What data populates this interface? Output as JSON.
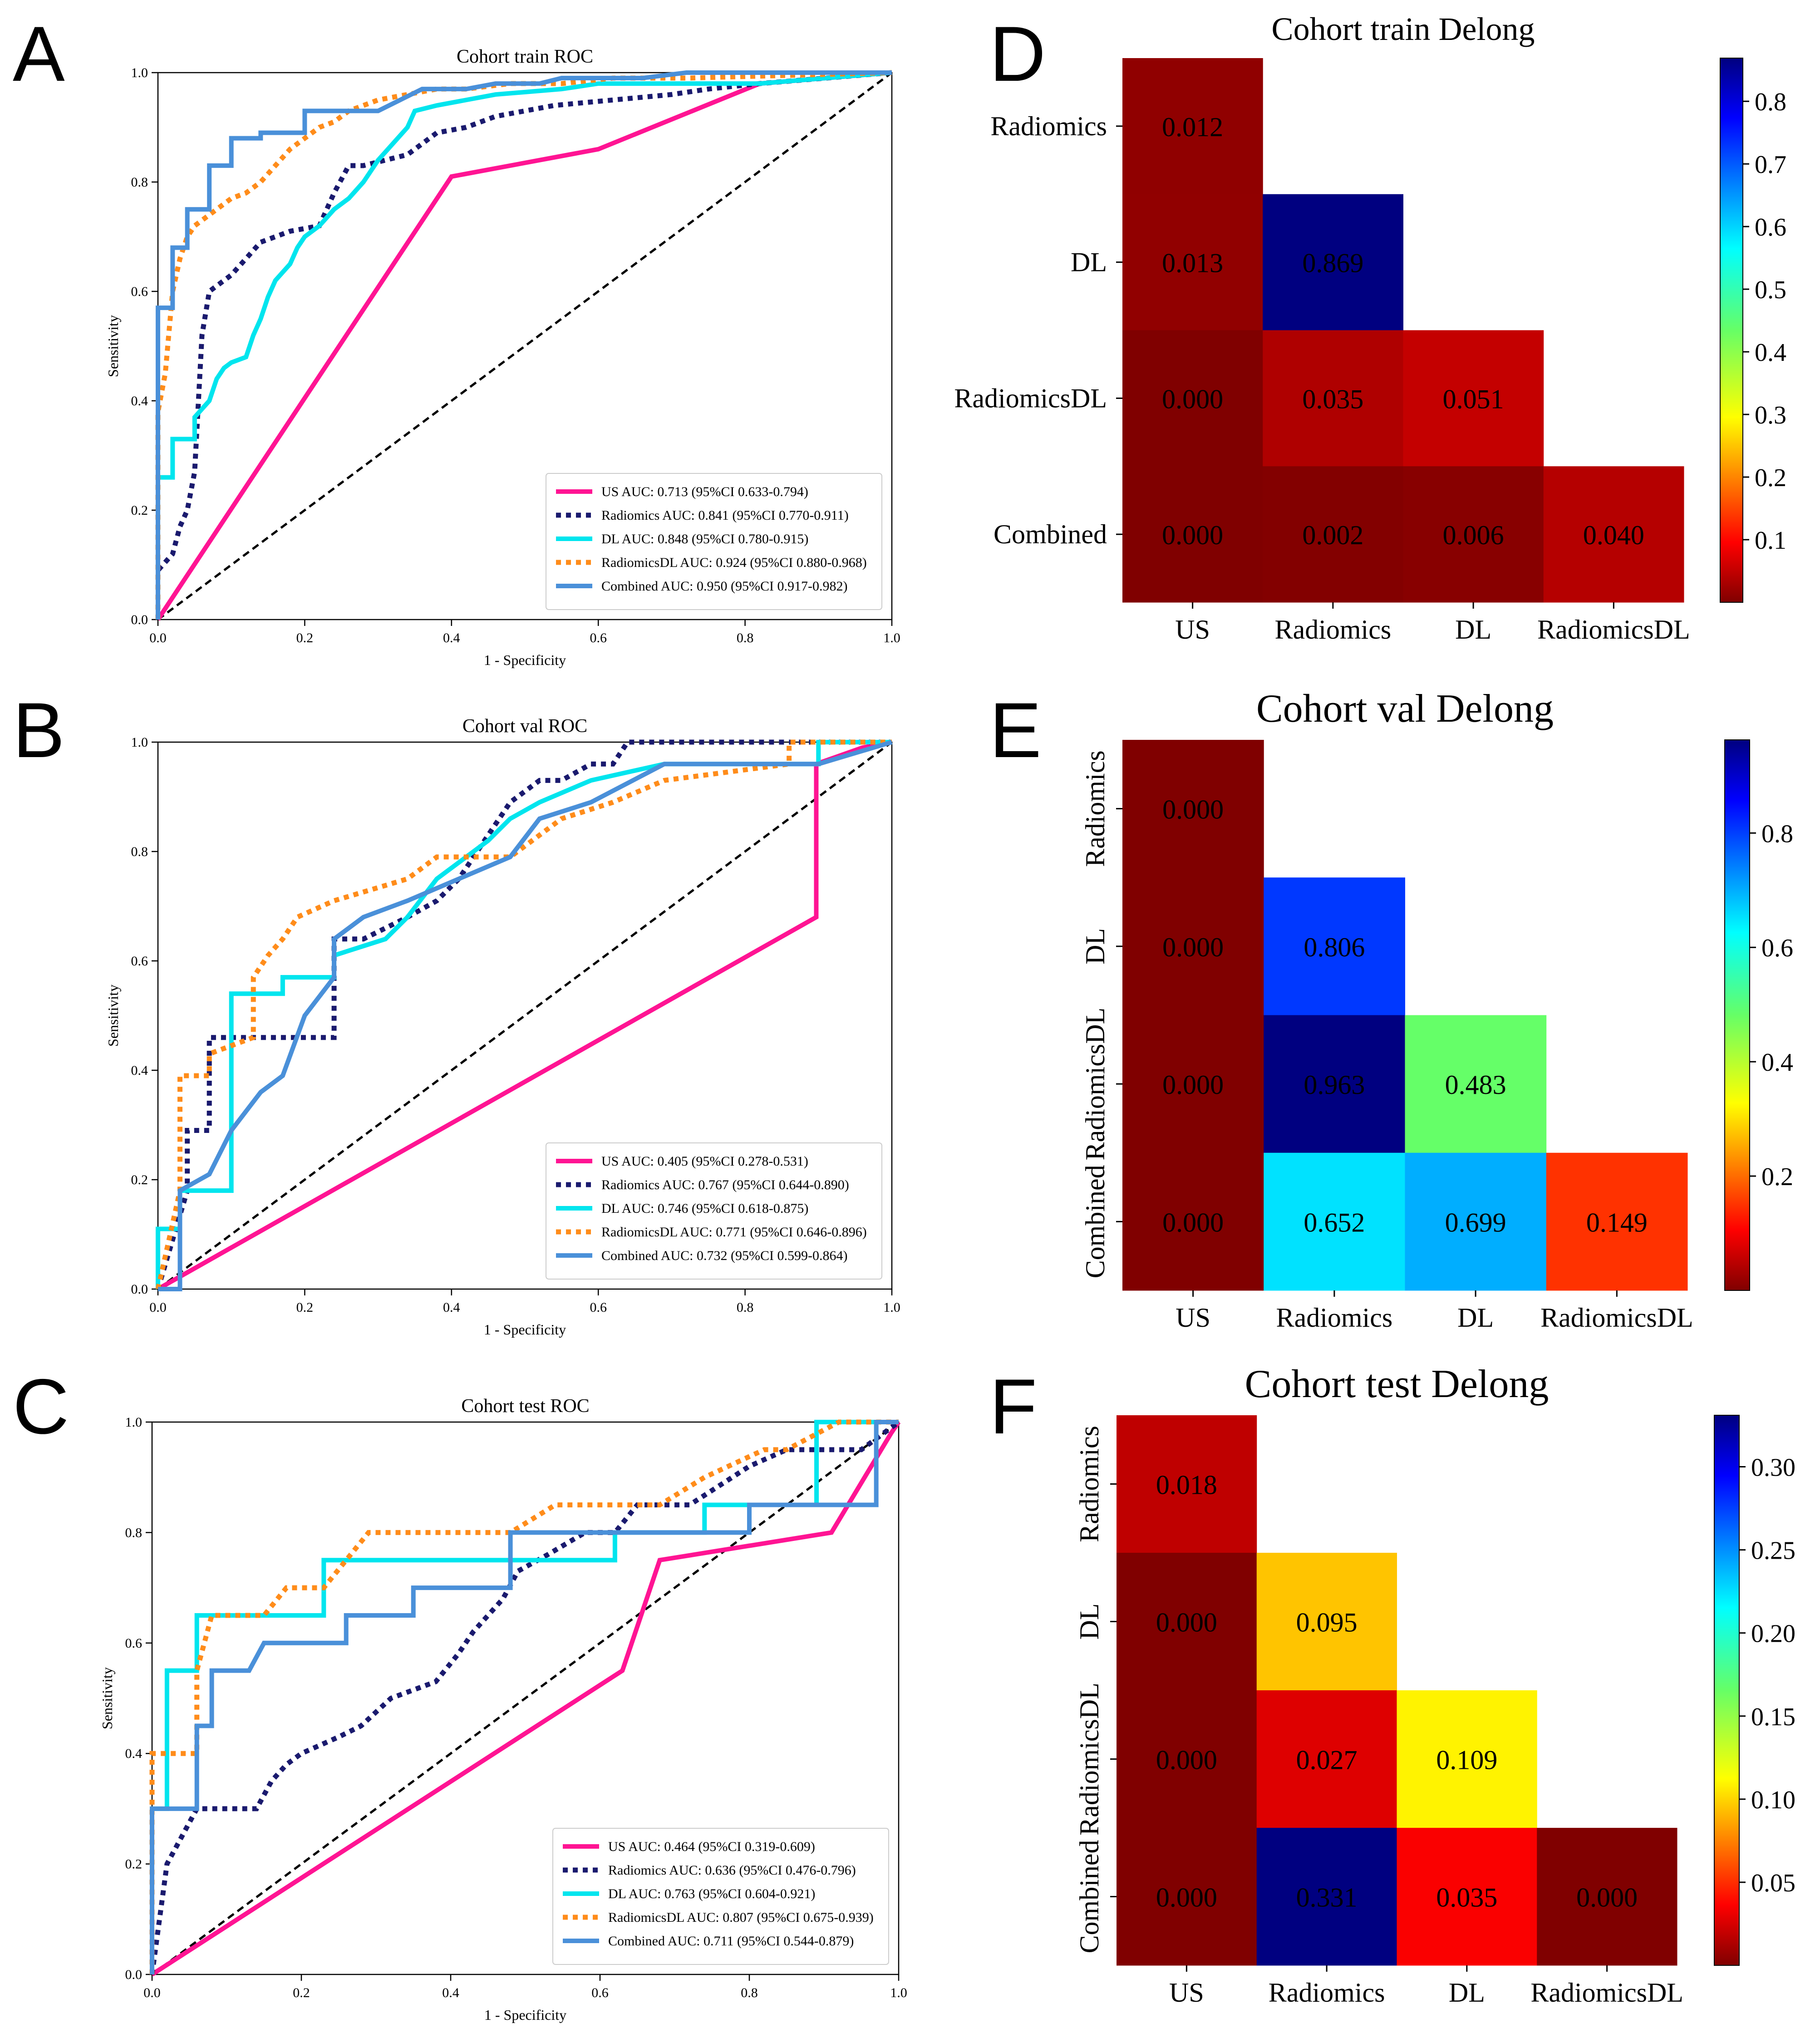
{
  "panel_letters": [
    "A",
    "B",
    "C",
    "D",
    "E",
    "F"
  ],
  "colors": {
    "US": "#ff1493",
    "Radiomics": "#1a1a6e",
    "DL": "#00e5ee",
    "RadiomicsDL": "#ff8c1a",
    "Combined": "#4a90d9",
    "diagonal": "#000000"
  },
  "chart_data": [
    {
      "type": "line",
      "id": "roc-train",
      "title": "Cohort train ROC",
      "xlabel": "1 - Specificity",
      "ylabel": "Sensitivity",
      "xlim": [
        0,
        1
      ],
      "ylim": [
        0,
        1
      ],
      "ticks": [
        "0.0",
        "0.2",
        "0.4",
        "0.6",
        "0.8",
        "1.0"
      ],
      "legend_position": "lower-right",
      "series": [
        {
          "key": "US",
          "name": "US AUC: 0.713 (95%CI 0.633-0.794)",
          "style": "solid",
          "x": [
            0,
            0.4,
            0.6,
            0.82,
            1.0
          ],
          "y": [
            0,
            0.81,
            0.86,
            0.98,
            1.0
          ]
        },
        {
          "key": "Radiomics",
          "name": "Radiomics AUC: 0.841 (95%CI 0.770-0.911)",
          "style": "dotted",
          "x": [
            0,
            0,
            0.02,
            0.03,
            0.04,
            0.05,
            0.06,
            0.07,
            0.08,
            0.1,
            0.12,
            0.14,
            0.18,
            0.22,
            0.24,
            0.26,
            0.28,
            0.34,
            0.36,
            0.38,
            0.42,
            0.46,
            0.54,
            0.62,
            0.7,
            0.75,
            0.82,
            1.0
          ],
          "y": [
            0,
            0.09,
            0.12,
            0.17,
            0.2,
            0.27,
            0.52,
            0.6,
            0.61,
            0.63,
            0.66,
            0.69,
            0.71,
            0.72,
            0.78,
            0.83,
            0.83,
            0.85,
            0.87,
            0.89,
            0.9,
            0.92,
            0.94,
            0.95,
            0.96,
            0.97,
            0.98,
            1.0
          ],
          "step": true
        },
        {
          "key": "DL",
          "name": "DL AUC: 0.848 (95%CI 0.780-0.915)",
          "style": "solid",
          "x": [
            0,
            0,
            0.02,
            0.02,
            0.05,
            0.05,
            0.07,
            0.08,
            0.09,
            0.1,
            0.12,
            0.13,
            0.14,
            0.15,
            0.16,
            0.18,
            0.19,
            0.2,
            0.22,
            0.24,
            0.26,
            0.28,
            0.3,
            0.32,
            0.34,
            0.35,
            0.38,
            0.42,
            0.46,
            0.55,
            0.6,
            0.65,
            0.82,
            1.0
          ],
          "y": [
            0,
            0.26,
            0.26,
            0.33,
            0.33,
            0.37,
            0.4,
            0.44,
            0.46,
            0.47,
            0.48,
            0.52,
            0.55,
            0.59,
            0.62,
            0.65,
            0.68,
            0.7,
            0.72,
            0.75,
            0.77,
            0.8,
            0.84,
            0.87,
            0.9,
            0.93,
            0.94,
            0.95,
            0.96,
            0.97,
            0.98,
            0.98,
            0.98,
            1.0
          ],
          "step": true
        },
        {
          "key": "RadiomicsDL",
          "name": "RadiomicsDL AUC: 0.924 (95%CI 0.880-0.968)",
          "style": "dotted",
          "x": [
            0,
            0,
            0.01,
            0.02,
            0.03,
            0.04,
            0.05,
            0.06,
            0.08,
            0.1,
            0.12,
            0.14,
            0.16,
            0.18,
            0.2,
            0.22,
            0.24,
            0.26,
            0.3,
            0.34,
            0.38,
            0.42,
            0.48,
            0.55,
            0.62,
            0.72,
            1.0
          ],
          "y": [
            0,
            0.38,
            0.45,
            0.6,
            0.66,
            0.7,
            0.72,
            0.73,
            0.75,
            0.77,
            0.78,
            0.8,
            0.83,
            0.86,
            0.88,
            0.9,
            0.91,
            0.93,
            0.95,
            0.96,
            0.97,
            0.97,
            0.98,
            0.98,
            0.99,
            0.99,
            1.0
          ],
          "step": true
        },
        {
          "key": "Combined",
          "name": "Combined AUC: 0.950 (95%CI 0.917-0.982)",
          "style": "solid",
          "x": [
            0,
            0,
            0.02,
            0.02,
            0.04,
            0.04,
            0.07,
            0.07,
            0.1,
            0.1,
            0.14,
            0.14,
            0.2,
            0.2,
            0.3,
            0.33,
            0.36,
            0.42,
            0.46,
            0.52,
            0.55,
            0.6,
            0.66,
            0.72,
            0.8,
            1.0
          ],
          "y": [
            0,
            0.57,
            0.57,
            0.68,
            0.68,
            0.75,
            0.75,
            0.83,
            0.83,
            0.88,
            0.88,
            0.89,
            0.89,
            0.93,
            0.93,
            0.95,
            0.97,
            0.97,
            0.98,
            0.98,
            0.99,
            0.99,
            0.99,
            1.0,
            1.0,
            1.0
          ],
          "step": true
        }
      ]
    },
    {
      "type": "line",
      "id": "roc-val",
      "title": "Cohort val ROC",
      "xlabel": "1 - Specificity",
      "ylabel": "Sensitivity",
      "xlim": [
        0,
        1
      ],
      "ylim": [
        0,
        1
      ],
      "ticks": [
        "0.0",
        "0.2",
        "0.4",
        "0.6",
        "0.8",
        "1.0"
      ],
      "legend_position": "lower-right",
      "series": [
        {
          "key": "US",
          "name": "US AUC: 0.405 (95%CI 0.278-0.531)",
          "style": "solid",
          "x": [
            0,
            0.897,
            0.897,
            0.96,
            1.0
          ],
          "y": [
            0,
            0.68,
            0.96,
            0.99,
            1.0
          ]
        },
        {
          "key": "Radiomics",
          "name": "Radiomics AUC: 0.767 (95%CI 0.644-0.890)",
          "style": "dotted",
          "x": [
            0,
            0.04,
            0.04,
            0.07,
            0.07,
            0.24,
            0.24,
            0.28,
            0.34,
            0.38,
            0.41,
            0.48,
            0.52,
            0.55,
            0.59,
            0.62,
            0.64,
            1.0
          ],
          "y": [
            0,
            0.18,
            0.29,
            0.29,
            0.46,
            0.46,
            0.64,
            0.64,
            0.68,
            0.71,
            0.75,
            0.89,
            0.93,
            0.93,
            0.96,
            0.96,
            1.0,
            1.0
          ],
          "step": true
        },
        {
          "key": "DL",
          "name": "DL AUC: 0.746 (95%CI 0.618-0.875)",
          "style": "solid",
          "x": [
            0,
            0,
            0.03,
            0.03,
            0.1,
            0.1,
            0.17,
            0.17,
            0.24,
            0.24,
            0.31,
            0.34,
            0.38,
            0.45,
            0.48,
            0.52,
            0.59,
            0.69,
            0.86,
            0.9,
            0.9,
            1.0
          ],
          "y": [
            0,
            0.11,
            0.11,
            0.18,
            0.18,
            0.54,
            0.54,
            0.57,
            0.57,
            0.61,
            0.64,
            0.68,
            0.75,
            0.82,
            0.86,
            0.89,
            0.93,
            0.96,
            0.96,
            0.96,
            1.0,
            1.0
          ],
          "step": true
        },
        {
          "key": "RadiomicsDL",
          "name": "RadiomicsDL AUC: 0.771 (95%CI 0.646-0.896)",
          "style": "dotted",
          "x": [
            0,
            0.03,
            0.03,
            0.07,
            0.07,
            0.13,
            0.13,
            0.15,
            0.17,
            0.19,
            0.24,
            0.34,
            0.38,
            0.48,
            0.55,
            0.62,
            0.69,
            0.86,
            0.86,
            1.0
          ],
          "y": [
            0,
            0.18,
            0.39,
            0.39,
            0.43,
            0.46,
            0.57,
            0.61,
            0.64,
            0.68,
            0.71,
            0.75,
            0.79,
            0.79,
            0.86,
            0.89,
            0.93,
            0.96,
            1.0,
            1.0
          ],
          "step": true
        },
        {
          "key": "Combined",
          "name": "Combined AUC: 0.732 (95%CI 0.599-0.864)",
          "style": "solid",
          "x": [
            0,
            0.03,
            0.03,
            0.07,
            0.1,
            0.14,
            0.17,
            0.2,
            0.24,
            0.24,
            0.28,
            0.34,
            0.41,
            0.48,
            0.52,
            0.59,
            0.69,
            0.86,
            0.9,
            1.0
          ],
          "y": [
            0,
            0,
            0.18,
            0.21,
            0.29,
            0.36,
            0.39,
            0.5,
            0.57,
            0.64,
            0.68,
            0.71,
            0.75,
            0.79,
            0.86,
            0.89,
            0.96,
            0.96,
            0.96,
            1.0
          ],
          "step": true
        }
      ]
    },
    {
      "type": "line",
      "id": "roc-test",
      "title": "Cohort test ROC",
      "xlabel": "1 - Specificity",
      "ylabel": "Sensitivity",
      "xlim": [
        0,
        1
      ],
      "ylim": [
        0,
        1
      ],
      "ticks": [
        "0.0",
        "0.2",
        "0.4",
        "0.6",
        "0.8",
        "1.0"
      ],
      "legend_position": "lower-right",
      "series": [
        {
          "key": "US",
          "name": "US AUC: 0.464 (95%CI 0.319-0.609)",
          "style": "solid",
          "x": [
            0,
            0.63,
            0.68,
            0.91,
            0.99,
            1.0
          ],
          "y": [
            0,
            0.55,
            0.75,
            0.8,
            0.98,
            1.0
          ]
        },
        {
          "key": "Radiomics",
          "name": "Radiomics AUC: 0.636 (95%CI 0.476-0.796)",
          "style": "dotted",
          "x": [
            0,
            0.02,
            0.04,
            0.06,
            0.14,
            0.16,
            0.18,
            0.2,
            0.25,
            0.28,
            0.32,
            0.38,
            0.41,
            0.43,
            0.45,
            0.47,
            0.49,
            0.53,
            0.58,
            0.6,
            0.62,
            0.65,
            0.72,
            0.8,
            0.85,
            0.89,
            0.95,
            1.0
          ],
          "y": [
            0,
            0.2,
            0.25,
            0.3,
            0.3,
            0.35,
            0.38,
            0.4,
            0.43,
            0.45,
            0.5,
            0.53,
            0.58,
            0.62,
            0.65,
            0.68,
            0.73,
            0.76,
            0.8,
            0.8,
            0.8,
            0.85,
            0.85,
            0.92,
            0.95,
            0.95,
            0.95,
            1.0
          ],
          "step": true
        },
        {
          "key": "DL",
          "name": "DL AUC: 0.763 (95%CI 0.604-0.921)",
          "style": "solid",
          "x": [
            0,
            0,
            0.02,
            0.02,
            0.04,
            0.04,
            0.06,
            0.06,
            0.23,
            0.23,
            0.62,
            0.62,
            0.74,
            0.74,
            0.89,
            0.89,
            0.95,
            0.95,
            1.0
          ],
          "y": [
            0,
            0.3,
            0.3,
            0.55,
            0.55,
            0.55,
            0.55,
            0.65,
            0.65,
            0.75,
            0.75,
            0.8,
            0.8,
            0.85,
            0.85,
            1.0,
            1.0,
            1.0,
            1.0
          ],
          "step": true
        },
        {
          "key": "RadiomicsDL",
          "name": "RadiomicsDL AUC: 0.807 (95%CI 0.675-0.939)",
          "style": "dotted",
          "x": [
            0,
            0,
            0.06,
            0.06,
            0.08,
            0.15,
            0.18,
            0.23,
            0.26,
            0.29,
            0.48,
            0.54,
            0.68,
            0.74,
            0.82,
            0.85,
            0.92,
            1.0
          ],
          "y": [
            0,
            0.4,
            0.4,
            0.55,
            0.65,
            0.65,
            0.7,
            0.7,
            0.75,
            0.8,
            0.8,
            0.85,
            0.85,
            0.9,
            0.95,
            0.95,
            1.0,
            1.0
          ],
          "step": true
        },
        {
          "key": "Combined",
          "name": "Combined AUC: 0.711 (95%CI 0.544-0.879)",
          "style": "solid",
          "x": [
            0,
            0,
            0.06,
            0.06,
            0.08,
            0.08,
            0.13,
            0.15,
            0.26,
            0.26,
            0.35,
            0.35,
            0.48,
            0.48,
            0.8,
            0.8,
            0.97,
            0.97,
            1.0
          ],
          "y": [
            0,
            0.3,
            0.3,
            0.45,
            0.45,
            0.55,
            0.55,
            0.6,
            0.6,
            0.65,
            0.65,
            0.7,
            0.7,
            0.8,
            0.8,
            0.85,
            0.85,
            1.0,
            1.0
          ],
          "step": true
        }
      ]
    },
    {
      "type": "heatmap",
      "id": "delong-train",
      "title": "Cohort train Delong",
      "columns": [
        "US",
        "Radiomics",
        "DL",
        "RadiomicsDL"
      ],
      "rows": [
        "Radiomics",
        "DL",
        "RadiomicsDL",
        "Combined"
      ],
      "row_label_orientation": "horizontal",
      "values": [
        [
          0.012,
          null,
          null,
          null
        ],
        [
          0.013,
          0.869,
          null,
          null
        ],
        [
          0.0,
          0.035,
          0.051,
          null
        ],
        [
          0.0,
          0.002,
          0.006,
          0.04
        ]
      ],
      "labels": [
        [
          "0.012",
          "",
          "",
          ""
        ],
        [
          "0.013",
          "0.869",
          "",
          ""
        ],
        [
          "0.000",
          "0.035",
          "0.051",
          ""
        ],
        [
          "0.000",
          "0.002",
          "0.006",
          "0.040"
        ]
      ],
      "colorbar": {
        "min": 0.0,
        "max": 0.869,
        "ticks": [
          "0.1",
          "0.2",
          "0.3",
          "0.4",
          "0.5",
          "0.6",
          "0.7",
          "0.8"
        ],
        "tick_values": [
          0.1,
          0.2,
          0.3,
          0.4,
          0.5,
          0.6,
          0.7,
          0.8
        ]
      }
    },
    {
      "type": "heatmap",
      "id": "delong-val",
      "title": "Cohort val Delong",
      "columns": [
        "US",
        "Radiomics",
        "DL",
        "RadiomicsDL"
      ],
      "rows": [
        "Radiomics",
        "DL",
        "RadiomicsDL",
        "Combined"
      ],
      "row_label_orientation": "vertical",
      "values": [
        [
          0.0,
          null,
          null,
          null
        ],
        [
          0.0,
          0.806,
          null,
          null
        ],
        [
          0.0,
          0.963,
          0.483,
          null
        ],
        [
          0.0,
          0.652,
          0.699,
          0.149
        ]
      ],
      "labels": [
        [
          "0.000",
          "",
          "",
          ""
        ],
        [
          "0.000",
          "0.806",
          "",
          ""
        ],
        [
          "0.000",
          "0.963",
          "0.483",
          ""
        ],
        [
          "0.000",
          "0.652",
          "0.699",
          "0.149"
        ]
      ],
      "colorbar": {
        "min": 0.0,
        "max": 0.963,
        "ticks": [
          "0.2",
          "0.4",
          "0.6",
          "0.8"
        ],
        "tick_values": [
          0.2,
          0.4,
          0.6,
          0.8
        ]
      }
    },
    {
      "type": "heatmap",
      "id": "delong-test",
      "title": "Cohort test Delong",
      "columns": [
        "US",
        "Radiomics",
        "DL",
        "RadiomicsDL"
      ],
      "rows": [
        "Radiomics",
        "DL",
        "RadiomicsDL",
        "Combined"
      ],
      "row_label_orientation": "vertical",
      "values": [
        [
          0.018,
          null,
          null,
          null
        ],
        [
          0.0,
          0.095,
          null,
          null
        ],
        [
          0.0,
          0.027,
          0.109,
          null
        ],
        [
          0.0,
          0.331,
          0.035,
          0.0
        ]
      ],
      "labels": [
        [
          "0.018",
          "",
          "",
          ""
        ],
        [
          "0.000",
          "0.095",
          "",
          ""
        ],
        [
          "0.000",
          "0.027",
          "0.109",
          ""
        ],
        [
          "0.000",
          "0.331",
          "0.035",
          "0.000"
        ]
      ],
      "colorbar": {
        "min": 0.0,
        "max": 0.331,
        "ticks": [
          "0.05",
          "0.10",
          "0.15",
          "0.20",
          "0.25",
          "0.30"
        ],
        "tick_values": [
          0.05,
          0.1,
          0.15,
          0.2,
          0.25,
          0.3
        ]
      }
    }
  ]
}
